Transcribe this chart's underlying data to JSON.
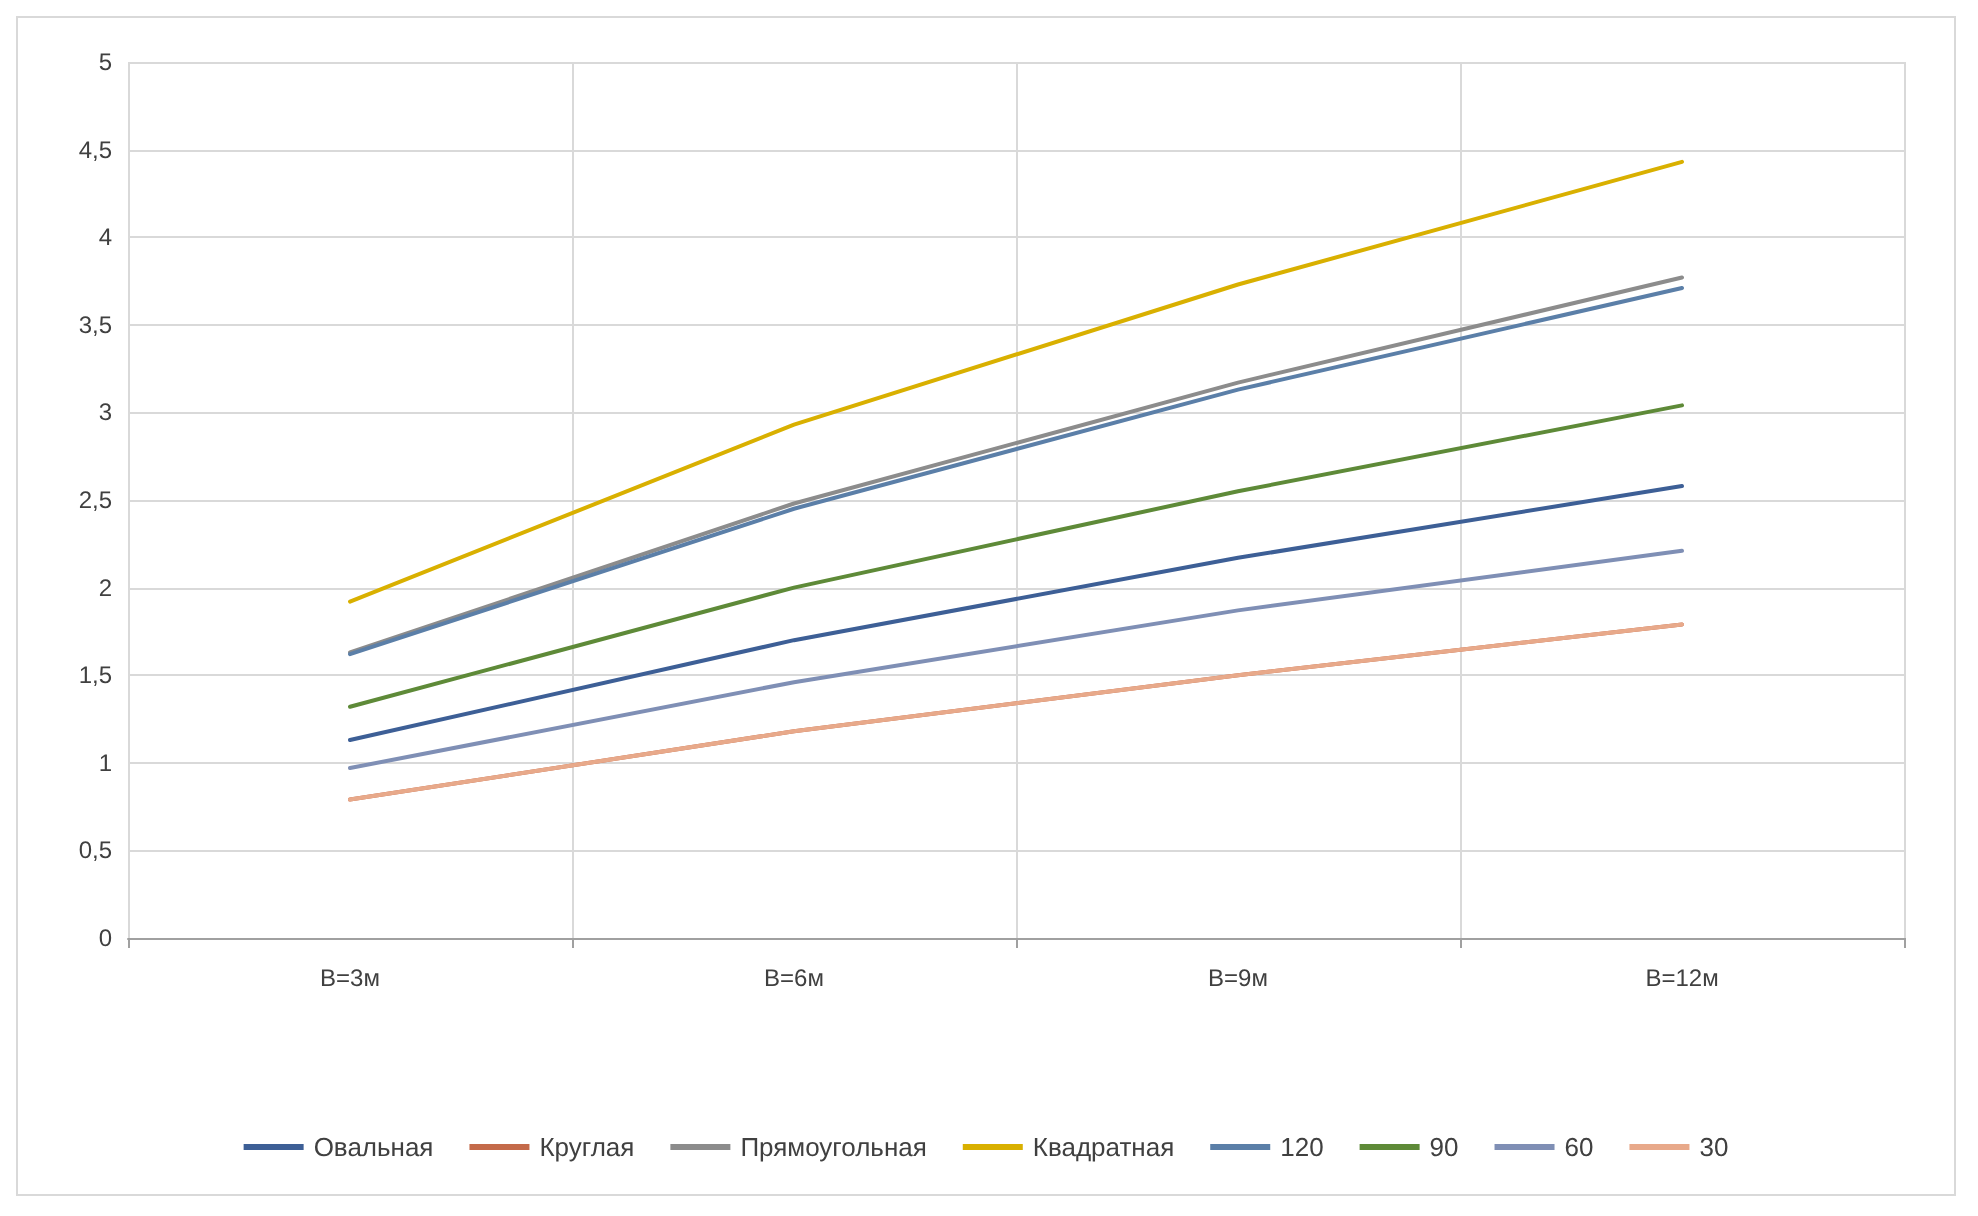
{
  "chart_data": {
    "type": "line",
    "categories": [
      "B=3м",
      "B=6м",
      "B=9м",
      "B=12м"
    ],
    "series": [
      {
        "name": "Овальная",
        "color": "#3d5f96",
        "values": [
          1.13,
          1.7,
          2.17,
          2.58
        ]
      },
      {
        "name": "Круглая",
        "color": "#c46a4a",
        "values": [
          0.79,
          1.18,
          1.5,
          1.79
        ]
      },
      {
        "name": "Прямоугольная",
        "color": "#8c8c8c",
        "values": [
          1.63,
          2.48,
          3.17,
          3.77
        ]
      },
      {
        "name": "Квадратная",
        "color": "#d9b000",
        "values": [
          1.92,
          2.93,
          3.73,
          4.43
        ]
      },
      {
        "name": "120",
        "color": "#5b7fa8",
        "values": [
          1.62,
          2.45,
          3.13,
          3.71
        ]
      },
      {
        "name": "90",
        "color": "#5e8a38",
        "values": [
          1.32,
          2.0,
          2.55,
          3.04
        ]
      },
      {
        "name": "60",
        "color": "#7f8fb5",
        "values": [
          0.97,
          1.46,
          1.87,
          2.21
        ]
      },
      {
        "name": "30",
        "color": "#e8a98a",
        "values": [
          0.79,
          1.18,
          1.5,
          1.79
        ]
      }
    ],
    "ylim": [
      0,
      5
    ],
    "yticks": [
      0,
      {
        "value": 0.5,
        "label": "0,5"
      },
      1,
      {
        "value": 1.5,
        "label": "1,5"
      },
      2,
      {
        "value": 2.5,
        "label": "2,5"
      },
      3,
      {
        "value": 3.5,
        "label": "3,5"
      },
      4,
      {
        "value": 4.5,
        "label": "4,5"
      },
      5
    ],
    "grid": true,
    "legend": "bottom",
    "marker": "none",
    "line_style": "solid"
  }
}
